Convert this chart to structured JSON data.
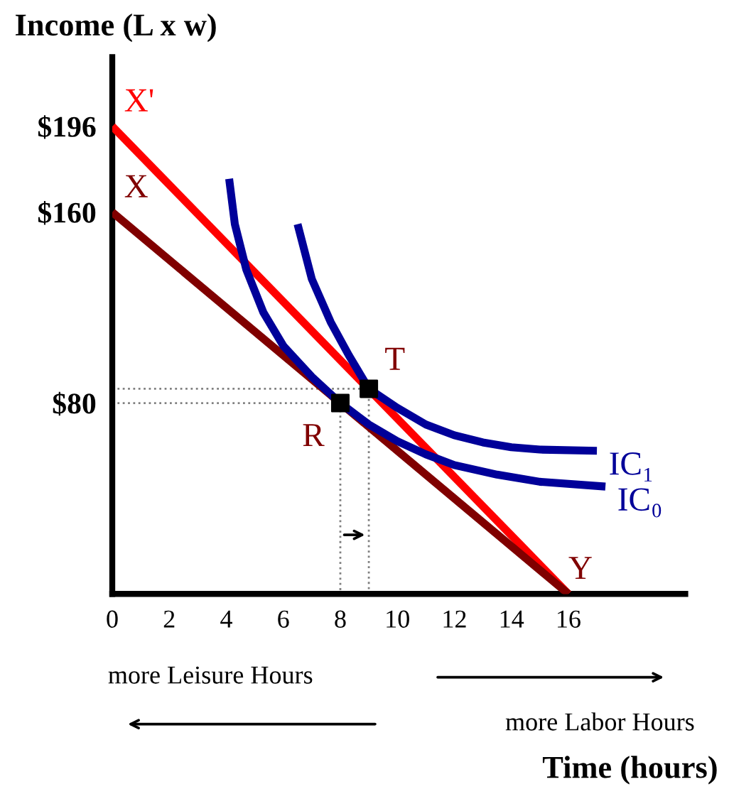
{
  "chart_data": {
    "type": "line",
    "ylabel": "Income (L x w)",
    "xlabel": "Time (hours)",
    "xlim": [
      0,
      20.1
    ],
    "ylim": [
      0,
      225
    ],
    "xticks": [
      0,
      2,
      4,
      6,
      8,
      10,
      12,
      14,
      16
    ],
    "yticks": [
      {
        "value": 80,
        "label": "$80"
      },
      {
        "value": 160,
        "label": "$160"
      },
      {
        "value": 196,
        "label": "$196"
      }
    ],
    "grid": false,
    "line_style": "solid",
    "marker": "none",
    "series": [
      {
        "name": "X'",
        "color": "#ff0000",
        "x": [
          0,
          16
        ],
        "values": [
          196,
          0
        ]
      },
      {
        "name": "X",
        "color": "#800000",
        "x": [
          0,
          16
        ],
        "values": [
          160,
          0
        ]
      },
      {
        "name": "IC₁",
        "color": "#000099",
        "x": [
          6.5,
          7,
          7.66,
          8.3,
          9,
          10,
          11,
          12,
          13,
          14,
          15,
          17
        ],
        "values": [
          155,
          132,
          114,
          100,
          86,
          78,
          71,
          66.5,
          63.5,
          61.5,
          60.5,
          60
        ]
      },
      {
        "name": "IC₀",
        "color": "#000099",
        "x": [
          4.1,
          4.3,
          4.7,
          5.3,
          6,
          7,
          8,
          9,
          10,
          11,
          12,
          13.5,
          15,
          17.3
        ],
        "values": [
          174,
          155,
          136,
          118,
          104,
          91,
          80,
          71,
          64,
          58.5,
          54,
          50,
          47,
          45
        ]
      },
      {
        "color": "#808080",
        "line_style": "dotted",
        "x": [
          0,
          8,
          8
        ],
        "values": [
          80,
          80,
          0
        ]
      },
      {
        "color": "#808080",
        "line_style": "dotted",
        "x": [
          0,
          9,
          9
        ],
        "values": [
          86,
          86,
          0
        ]
      },
      {
        "type": "scatter",
        "marker": "square",
        "color": "#000000",
        "x": [
          8,
          9
        ],
        "values": [
          80,
          86
        ]
      }
    ],
    "annotations": [
      {
        "text": "R",
        "x": 8,
        "y": 80
      },
      {
        "text": "T",
        "x": 9,
        "y": 86
      },
      {
        "text": "Y",
        "x": 16,
        "y": 0
      },
      "more Leisure Hours",
      "more Labor Hours"
    ]
  }
}
